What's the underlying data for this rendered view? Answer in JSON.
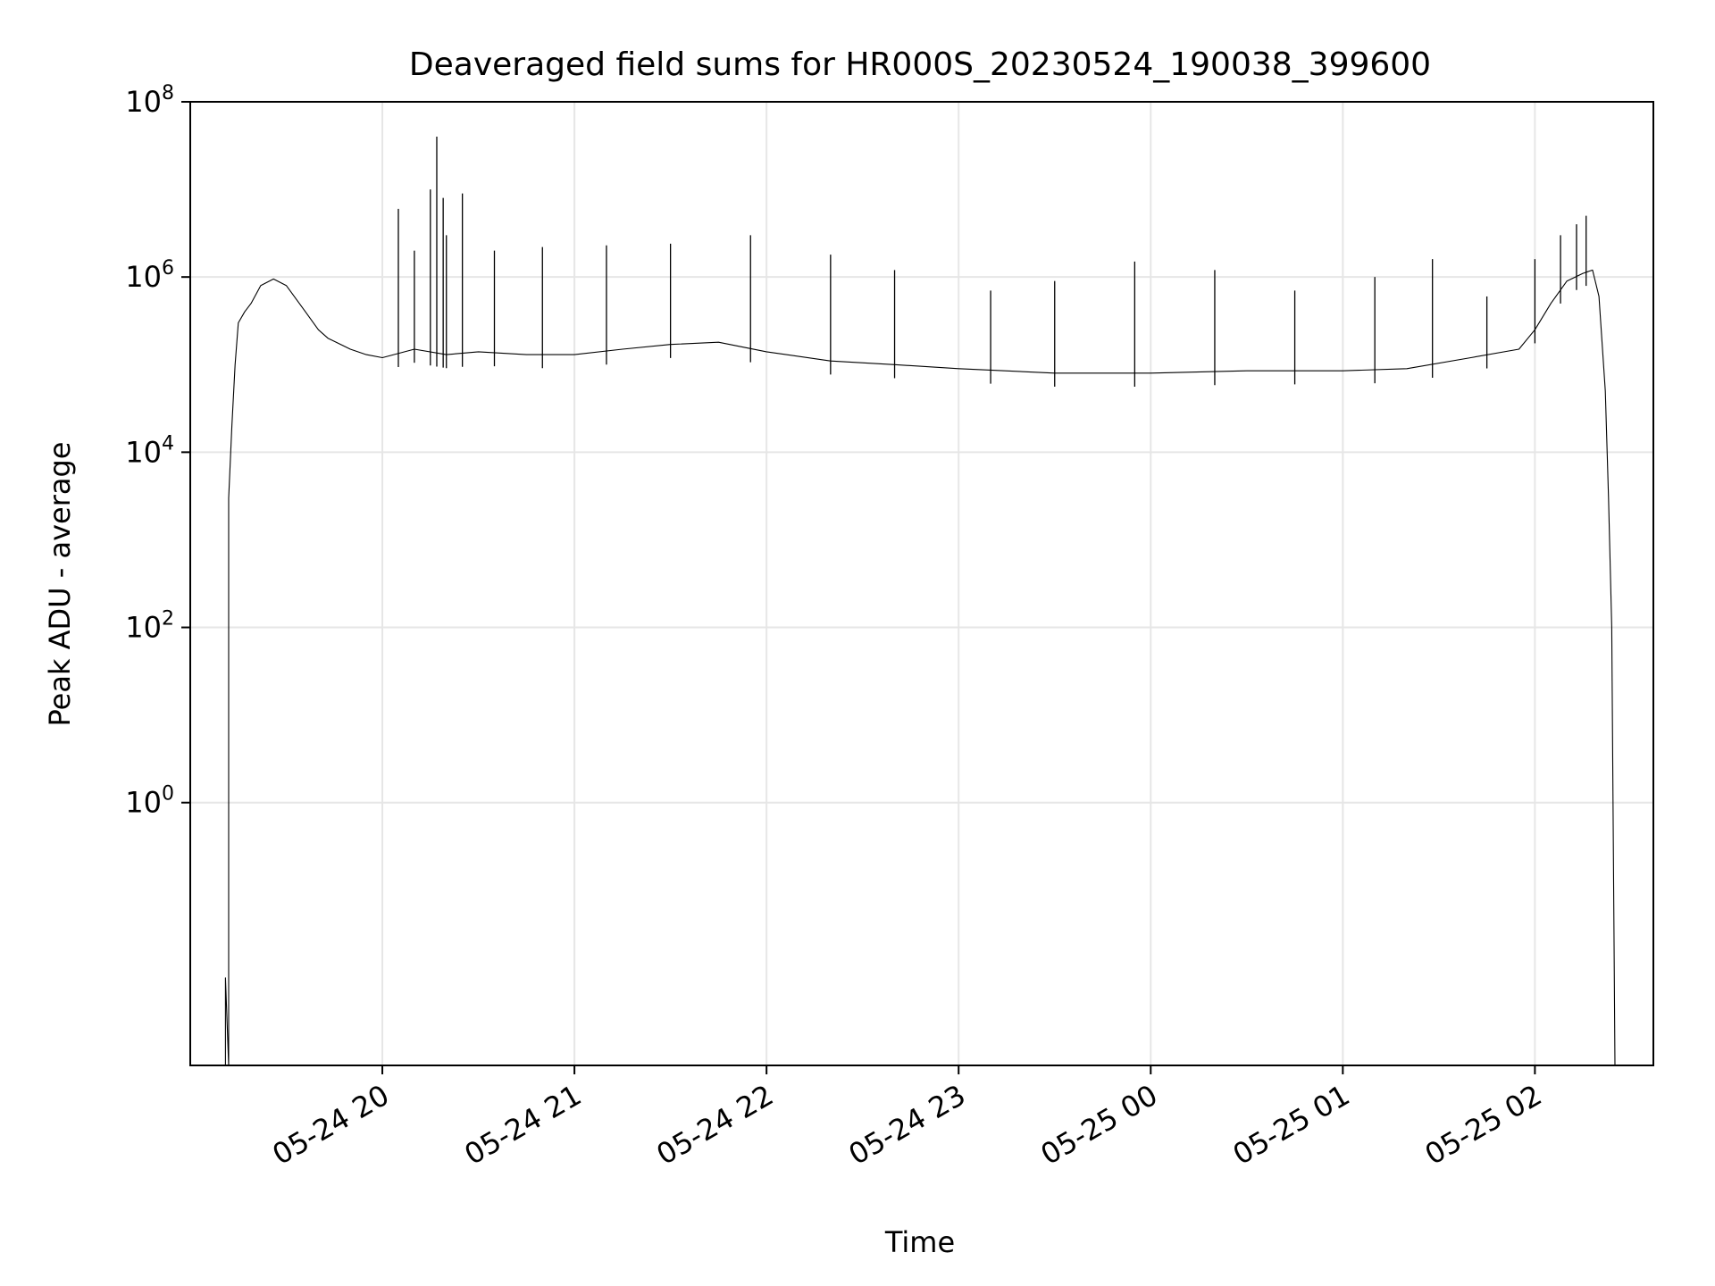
{
  "chart_data": {
    "type": "line",
    "title": "Deaveraged field sums for HR000S_20230524_190038_399600",
    "xlabel": "Time",
    "ylabel": "Peak ADU - average",
    "yscale": "log",
    "ylim": [
      0.001,
      100000000
    ],
    "xlim": [
      "2023-05-24 19:00",
      "2023-05-25 02:37"
    ],
    "grid": true,
    "line_color": "#000000",
    "x_ticks": [
      {
        "value": "2023-05-24 20:00",
        "label": "05-24 20"
      },
      {
        "value": "2023-05-24 21:00",
        "label": "05-24 21"
      },
      {
        "value": "2023-05-24 22:00",
        "label": "05-24 22"
      },
      {
        "value": "2023-05-24 23:00",
        "label": "05-24 23"
      },
      {
        "value": "2023-05-25 00:00",
        "label": "05-25 00"
      },
      {
        "value": "2023-05-25 01:00",
        "label": "05-25 01"
      },
      {
        "value": "2023-05-25 02:00",
        "label": "05-25 02"
      }
    ],
    "y_ticks": [
      {
        "value": 1,
        "base": "10",
        "exp": "0"
      },
      {
        "value": 100,
        "base": "10",
        "exp": "2"
      },
      {
        "value": 10000,
        "base": "10",
        "exp": "4"
      },
      {
        "value": 1000000,
        "base": "10",
        "exp": "6"
      },
      {
        "value": 100000000,
        "base": "10",
        "exp": "8"
      }
    ],
    "series": [
      {
        "x": [
          "2023-05-24 19:11",
          "2023-05-24 19:11",
          "2023-05-24 19:12",
          "2023-05-24 19:12",
          "2023-05-24 19:13",
          "2023-05-24 19:14",
          "2023-05-24 19:15",
          "2023-05-24 19:17",
          "2023-05-24 19:19",
          "2023-05-24 19:22",
          "2023-05-24 19:26",
          "2023-05-24 19:30",
          "2023-05-24 19:36",
          "2023-05-24 19:40",
          "2023-05-24 19:43",
          "2023-05-24 19:50",
          "2023-05-24 19:55",
          "2023-05-24 20:00",
          "2023-05-24 20:10",
          "2023-05-24 20:20",
          "2023-05-24 20:30",
          "2023-05-24 20:45",
          "2023-05-24 21:00",
          "2023-05-24 21:15",
          "2023-05-24 21:30",
          "2023-05-24 21:45",
          "2023-05-24 22:00",
          "2023-05-24 22:20",
          "2023-05-24 22:40",
          "2023-05-24 23:00",
          "2023-05-24 23:30",
          "2023-05-25 00:00",
          "2023-05-25 00:30",
          "2023-05-25 01:00",
          "2023-05-25 01:20",
          "2023-05-25 01:40",
          "2023-05-25 01:55",
          "2023-05-25 02:00",
          "2023-05-25 02:05",
          "2023-05-25 02:10",
          "2023-05-25 02:15",
          "2023-05-25 02:18",
          "2023-05-25 02:20",
          "2023-05-25 02:22",
          "2023-05-25 02:23",
          "2023-05-25 02:24",
          "2023-05-25 02:25"
        ],
        "y": [
          0.001,
          0.01,
          0.001,
          3000,
          20000,
          100000,
          300000,
          400000,
          500000,
          800000,
          950000,
          800000,
          400000,
          250000,
          200000,
          150000,
          130000,
          120000,
          150000,
          130000,
          140000,
          130000,
          130000,
          150000,
          170000,
          180000,
          140000,
          110000,
          100000,
          90000,
          80000,
          80000,
          85000,
          85000,
          90000,
          120000,
          150000,
          250000,
          500000,
          900000,
          1100000,
          1200000,
          600000,
          50000,
          3000,
          100,
          0.001
        ],
        "spikes": [
          {
            "x": "2023-05-24 20:05",
            "y": 6000000
          },
          {
            "x": "2023-05-24 20:10",
            "y": 2000000
          },
          {
            "x": "2023-05-24 20:15",
            "y": 10000000
          },
          {
            "x": "2023-05-24 20:17",
            "y": 40000000
          },
          {
            "x": "2023-05-24 20:19",
            "y": 8000000
          },
          {
            "x": "2023-05-24 20:20",
            "y": 3000000
          },
          {
            "x": "2023-05-24 20:25",
            "y": 9000000
          },
          {
            "x": "2023-05-24 20:35",
            "y": 2000000
          },
          {
            "x": "2023-05-24 20:50",
            "y": 2200000
          },
          {
            "x": "2023-05-24 21:10",
            "y": 2300000
          },
          {
            "x": "2023-05-24 21:30",
            "y": 2400000
          },
          {
            "x": "2023-05-24 21:55",
            "y": 3000000
          },
          {
            "x": "2023-05-24 22:20",
            "y": 1800000
          },
          {
            "x": "2023-05-24 22:40",
            "y": 1200000
          },
          {
            "x": "2023-05-24 23:10",
            "y": 700000
          },
          {
            "x": "2023-05-24 23:30",
            "y": 900000
          },
          {
            "x": "2023-05-24 23:55",
            "y": 1500000
          },
          {
            "x": "2023-05-25 00:20",
            "y": 1200000
          },
          {
            "x": "2023-05-25 00:45",
            "y": 700000
          },
          {
            "x": "2023-05-25 01:10",
            "y": 1000000
          },
          {
            "x": "2023-05-25 01:28",
            "y": 1600000
          },
          {
            "x": "2023-05-25 01:45",
            "y": 600000
          },
          {
            "x": "2023-05-25 02:00",
            "y": 1600000
          },
          {
            "x": "2023-05-25 02:08",
            "y": 3000000
          },
          {
            "x": "2023-05-25 02:13",
            "y": 4000000
          },
          {
            "x": "2023-05-25 02:16",
            "y": 5000000
          }
        ]
      }
    ]
  }
}
